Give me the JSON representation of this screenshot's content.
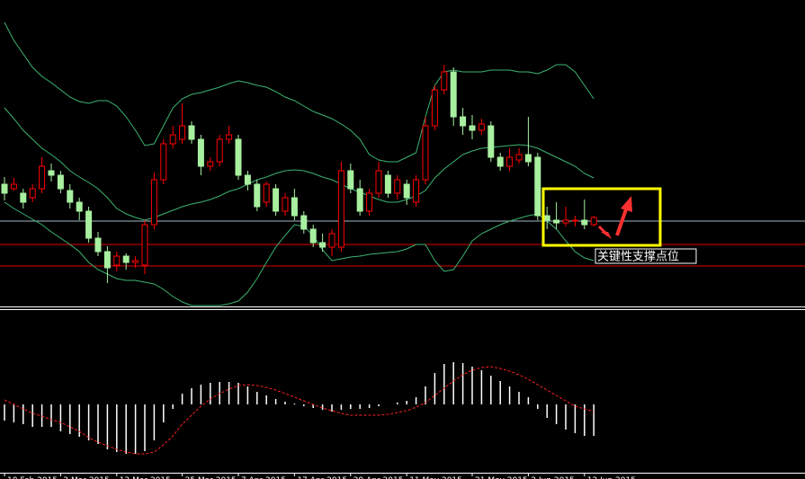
{
  "chart_data": {
    "type": "candlestick",
    "up_color": "#ff0000",
    "down_color": "#a8f0a0",
    "band_color": "#3cb371",
    "ylim": [
      0,
      340
    ],
    "candles": [
      [
        135,
        143,
        117,
        125
      ],
      [
        130,
        142,
        128,
        135
      ],
      [
        125,
        130,
        108,
        115
      ],
      [
        120,
        135,
        115,
        130
      ],
      [
        130,
        165,
        125,
        155
      ],
      [
        150,
        158,
        138,
        145
      ],
      [
        145,
        150,
        125,
        130
      ],
      [
        128,
        135,
        108,
        115
      ],
      [
        115,
        120,
        95,
        105
      ],
      [
        105,
        110,
        70,
        75
      ],
      [
        75,
        82,
        55,
        60
      ],
      [
        60,
        66,
        25,
        42
      ],
      [
        45,
        60,
        38,
        55
      ],
      [
        55,
        58,
        40,
        48
      ],
      [
        48,
        55,
        42,
        50
      ],
      [
        45,
        95,
        35,
        90
      ],
      [
        90,
        148,
        85,
        140
      ],
      [
        140,
        185,
        135,
        180
      ],
      [
        180,
        200,
        175,
        190
      ],
      [
        185,
        225,
        180,
        200
      ],
      [
        200,
        205,
        180,
        185
      ],
      [
        185,
        190,
        145,
        155
      ],
      [
        155,
        165,
        150,
        160
      ],
      [
        160,
        190,
        155,
        185
      ],
      [
        185,
        200,
        180,
        190
      ],
      [
        185,
        190,
        140,
        145
      ],
      [
        145,
        150,
        128,
        135
      ],
      [
        135,
        140,
        105,
        110
      ],
      [
        115,
        138,
        110,
        135
      ],
      [
        130,
        135,
        100,
        105
      ],
      [
        105,
        125,
        100,
        120
      ],
      [
        120,
        130,
        95,
        100
      ],
      [
        100,
        105,
        80,
        85
      ],
      [
        85,
        90,
        65,
        70
      ],
      [
        70,
        80,
        60,
        65
      ],
      [
        65,
        85,
        55,
        80
      ],
      [
        65,
        160,
        60,
        150
      ],
      [
        150,
        158,
        125,
        130
      ],
      [
        130,
        140,
        100,
        105
      ],
      [
        105,
        130,
        100,
        125
      ],
      [
        125,
        160,
        120,
        150
      ],
      [
        145,
        150,
        120,
        125
      ],
      [
        125,
        145,
        118,
        140
      ],
      [
        135,
        140,
        112,
        120
      ],
      [
        115,
        145,
        110,
        140
      ],
      [
        140,
        210,
        135,
        200
      ],
      [
        200,
        245,
        195,
        240
      ],
      [
        240,
        268,
        235,
        260
      ],
      [
        260,
        265,
        200,
        210
      ],
      [
        210,
        220,
        190,
        200
      ],
      [
        200,
        212,
        185,
        195
      ],
      [
        195,
        208,
        190,
        202
      ],
      [
        200,
        205,
        160,
        165
      ],
      [
        165,
        170,
        150,
        155
      ],
      [
        155,
        175,
        150,
        165
      ],
      [
        162,
        175,
        158,
        168
      ],
      [
        168,
        210,
        155,
        160
      ],
      [
        165,
        170,
        95,
        100
      ],
      [
        100,
        110,
        85,
        95
      ],
      [
        95,
        115,
        85,
        92
      ],
      [
        92,
        110,
        88,
        95
      ],
      [
        94,
        100,
        88,
        95
      ],
      [
        95,
        118,
        85,
        90
      ],
      [
        90,
        100,
        88,
        98
      ]
    ],
    "bands": [
      {
        "values": [
          315,
          295,
          280,
          265,
          255,
          248,
          240,
          232,
          227,
          225,
          228,
          228,
          222,
          210,
          195,
          178,
          180,
          200,
          220,
          230,
          235,
          237,
          240,
          243,
          247,
          250,
          248,
          245,
          243,
          238,
          232,
          228,
          222,
          216,
          212,
          208,
          202,
          195,
          185,
          168,
          162,
          160,
          160,
          165,
          170,
          210,
          245,
          260,
          262,
          260,
          260,
          260,
          262,
          262,
          262,
          260,
          260,
          258,
          262,
          268,
          268,
          260,
          245,
          230
        ]
      },
      {
        "values": [
          220,
          208,
          195,
          185,
          175,
          168,
          160,
          150,
          143,
          137,
          130,
          120,
          108,
          102,
          98,
          95,
          98,
          102,
          106,
          110,
          113,
          115,
          118,
          122,
          127,
          130,
          135,
          140,
          143,
          147,
          150,
          151,
          150,
          147,
          143,
          140,
          135,
          130,
          126,
          122,
          118,
          115,
          115,
          118,
          122,
          128,
          142,
          152,
          160,
          168,
          172,
          175,
          176,
          177,
          178,
          179,
          178,
          175,
          170,
          165,
          160,
          155,
          147,
          142
        ]
      },
      {
        "values": [
          115,
          108,
          102,
          96,
          90,
          82,
          75,
          68,
          60,
          48,
          40,
          35,
          30,
          28,
          28,
          26,
          24,
          18,
          10,
          4,
          0,
          0,
          0,
          0,
          2,
          5,
          15,
          30,
          48,
          65,
          78,
          90,
          88,
          78,
          62,
          50,
          52,
          54,
          55,
          57,
          58,
          59,
          60,
          63,
          68,
          68,
          50,
          38,
          40,
          55,
          72,
          80,
          85,
          90,
          94,
          97,
          100,
          102,
          94,
          85,
          72,
          60,
          53,
          50
        ]
      }
    ],
    "levels": [
      {
        "value": 94,
        "color": "#9fb8c8"
      },
      {
        "value": 68,
        "color": "#e00000"
      },
      {
        "value": 44,
        "color": "#e00000"
      }
    ],
    "annotation": "关键性支撑点位",
    "macd": {
      "ylim": [
        -75,
        105
      ],
      "hist_color": "#ffffff",
      "signal_color": "#ff2020",
      "histogram": [
        -18,
        -20,
        -22,
        -25,
        -25,
        -25,
        -30,
        -33,
        -36,
        -40,
        -44,
        -50,
        -53,
        -55,
        -55,
        -52,
        -40,
        -20,
        -5,
        12,
        18,
        22,
        24,
        25,
        25,
        24,
        20,
        14,
        10,
        6,
        3,
        1,
        -2,
        -4,
        -6,
        -8,
        -6,
        -5,
        -5,
        -4,
        -2,
        0,
        2,
        4,
        8,
        20,
        35,
        45,
        47,
        46,
        42,
        38,
        32,
        26,
        20,
        14,
        8,
        -5,
        -15,
        -22,
        -28,
        -32,
        -35,
        -35
      ],
      "signal": [
        5,
        0,
        -5,
        -10,
        -13,
        -17,
        -20,
        -25,
        -30,
        -37,
        -42,
        -46,
        -50,
        -53,
        -55,
        -55,
        -53,
        -45,
        -35,
        -22,
        -12,
        -2,
        6,
        12,
        17,
        21,
        22,
        21,
        19,
        16,
        12,
        8,
        4,
        0,
        -4,
        -7,
        -10,
        -12,
        -12,
        -12,
        -12,
        -11,
        -9,
        -7,
        -3,
        2,
        10,
        18,
        26,
        33,
        38,
        41,
        42,
        40,
        37,
        33,
        28,
        22,
        16,
        10,
        4,
        -2,
        -5,
        -8
      ]
    },
    "xticks": [
      {
        "value": 0,
        "label": "10 Feb 2015"
      },
      {
        "value": 6,
        "label": "2 Mar 2015"
      },
      {
        "value": 12,
        "label": "12 Mar 2015"
      },
      {
        "value": 19,
        "label": "25 Mar 2015"
      },
      {
        "value": 25,
        "label": "7 Apr 2015"
      },
      {
        "value": 31,
        "label": "17 Apr 2015"
      },
      {
        "value": 37,
        "label": "29 Apr 2015"
      },
      {
        "value": 43,
        "label": "11 May 2015"
      },
      {
        "value": 50,
        "label": "21 May 2015"
      },
      {
        "value": 56,
        "label": "2 Jun 2015"
      },
      {
        "value": 62,
        "label": "12 Jun 2015"
      }
    ]
  }
}
